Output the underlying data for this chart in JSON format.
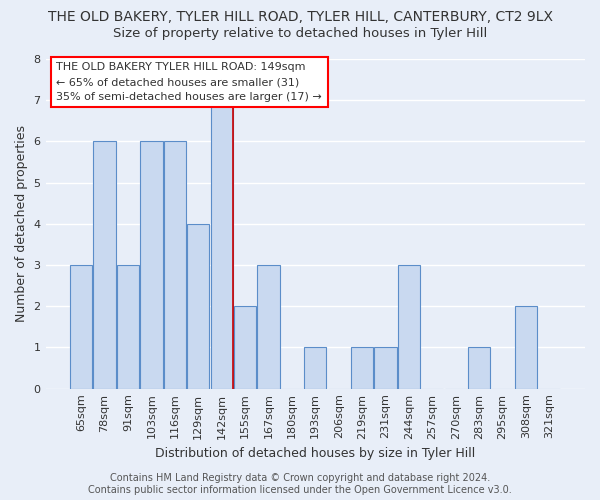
{
  "title": "THE OLD BAKERY, TYLER HILL ROAD, TYLER HILL, CANTERBURY, CT2 9LX",
  "subtitle": "Size of property relative to detached houses in Tyler Hill",
  "xlabel": "Distribution of detached houses by size in Tyler Hill",
  "ylabel": "Number of detached properties",
  "categories": [
    "65sqm",
    "78sqm",
    "91sqm",
    "103sqm",
    "116sqm",
    "129sqm",
    "142sqm",
    "155sqm",
    "167sqm",
    "180sqm",
    "193sqm",
    "206sqm",
    "219sqm",
    "231sqm",
    "244sqm",
    "257sqm",
    "270sqm",
    "283sqm",
    "295sqm",
    "308sqm",
    "321sqm"
  ],
  "values": [
    3,
    6,
    3,
    6,
    6,
    4,
    7,
    2,
    3,
    0,
    1,
    0,
    1,
    1,
    3,
    0,
    0,
    1,
    0,
    2,
    0
  ],
  "bar_color": "#c9d9f0",
  "bar_edge_color": "#5b8dc9",
  "background_color": "#e8eef8",
  "grid_color": "#ffffff",
  "ylim": [
    0,
    8
  ],
  "yticks": [
    0,
    1,
    2,
    3,
    4,
    5,
    6,
    7,
    8
  ],
  "vline_x_index": 7,
  "vline_color": "#cc0000",
  "annotation_box": {
    "text_line1": "THE OLD BAKERY TYLER HILL ROAD: 149sqm",
    "text_line2": "← 65% of detached houses are smaller (31)",
    "text_line3": "35% of semi-detached houses are larger (17) →"
  },
  "footer_line1": "Contains HM Land Registry data © Crown copyright and database right 2024.",
  "footer_line2": "Contains public sector information licensed under the Open Government Licence v3.0.",
  "title_fontsize": 10,
  "subtitle_fontsize": 9.5,
  "axis_label_fontsize": 9,
  "tick_fontsize": 8,
  "annotation_fontsize": 8,
  "footer_fontsize": 7
}
